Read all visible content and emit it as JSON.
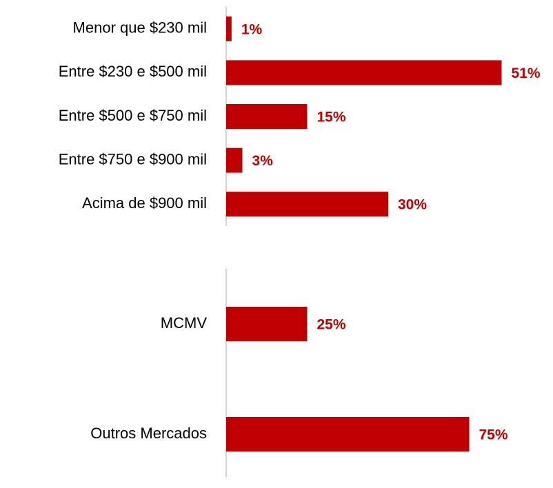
{
  "chart_data": [
    {
      "type": "hbar",
      "categories": [
        "Menor que $230 mil",
        "Entre $230 e $500 mil",
        "Entre $500 e $750 mil",
        "Entre $750 e $900 mil",
        "Acima de $900 mil"
      ],
      "values": [
        1,
        51,
        15,
        3,
        30
      ],
      "value_labels": [
        "1%",
        "51%",
        "15%",
        "3%",
        "30%"
      ],
      "color": "#c00000",
      "xlim": [
        0,
        60
      ]
    },
    {
      "type": "hbar",
      "categories": [
        "MCMV",
        "Outros Mercados"
      ],
      "values": [
        25,
        75
      ],
      "value_labels": [
        "25%",
        "75%"
      ],
      "color": "#c00000",
      "xlim": [
        0,
        100
      ]
    }
  ]
}
